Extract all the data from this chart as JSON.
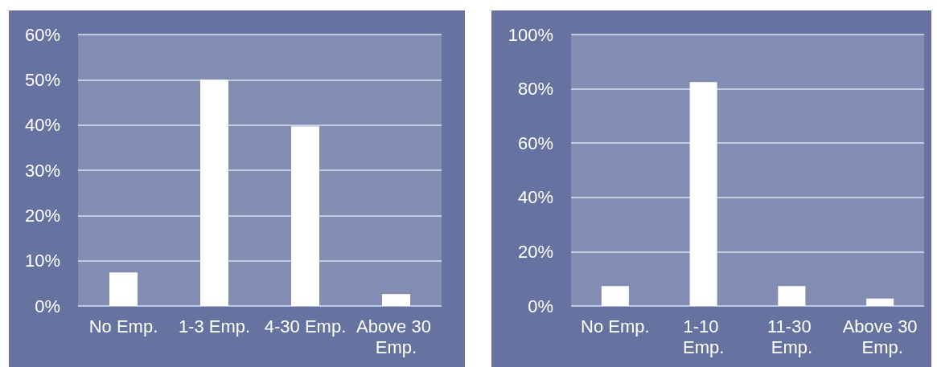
{
  "chart_data": [
    {
      "type": "bar",
      "categories": [
        "No Emp.",
        "1-3 Emp.",
        "4-30 Emp.",
        "Above 30 Emp."
      ],
      "values": [
        7.4,
        50,
        39.7,
        2.6
      ],
      "color": "#ffffff",
      "ylim": [
        0,
        60
      ],
      "yticks": [
        {
          "value": 0,
          "label": "0%"
        },
        {
          "value": 10,
          "label": "10%"
        },
        {
          "value": 20,
          "label": "20%"
        },
        {
          "value": 30,
          "label": "30%"
        },
        {
          "value": 40,
          "label": "40%"
        },
        {
          "value": 50,
          "label": "50%"
        },
        {
          "value": 60,
          "label": "60%"
        }
      ],
      "grid": "y"
    },
    {
      "type": "bar",
      "categories": [
        "No Emp.",
        "1-10 Emp.",
        "11-30 Emp.",
        "Above 30 Emp."
      ],
      "values": [
        7.3,
        82.5,
        7.3,
        2.7
      ],
      "color": "#ffffff",
      "ylim": [
        0,
        100
      ],
      "yticks": [
        {
          "value": 0,
          "label": "0%"
        },
        {
          "value": 20,
          "label": "20%"
        },
        {
          "value": 40,
          "label": "40%"
        },
        {
          "value": 60,
          "label": "60%"
        },
        {
          "value": 80,
          "label": "80%"
        },
        {
          "value": 100,
          "label": "100%"
        }
      ],
      "grid": "y"
    }
  ]
}
